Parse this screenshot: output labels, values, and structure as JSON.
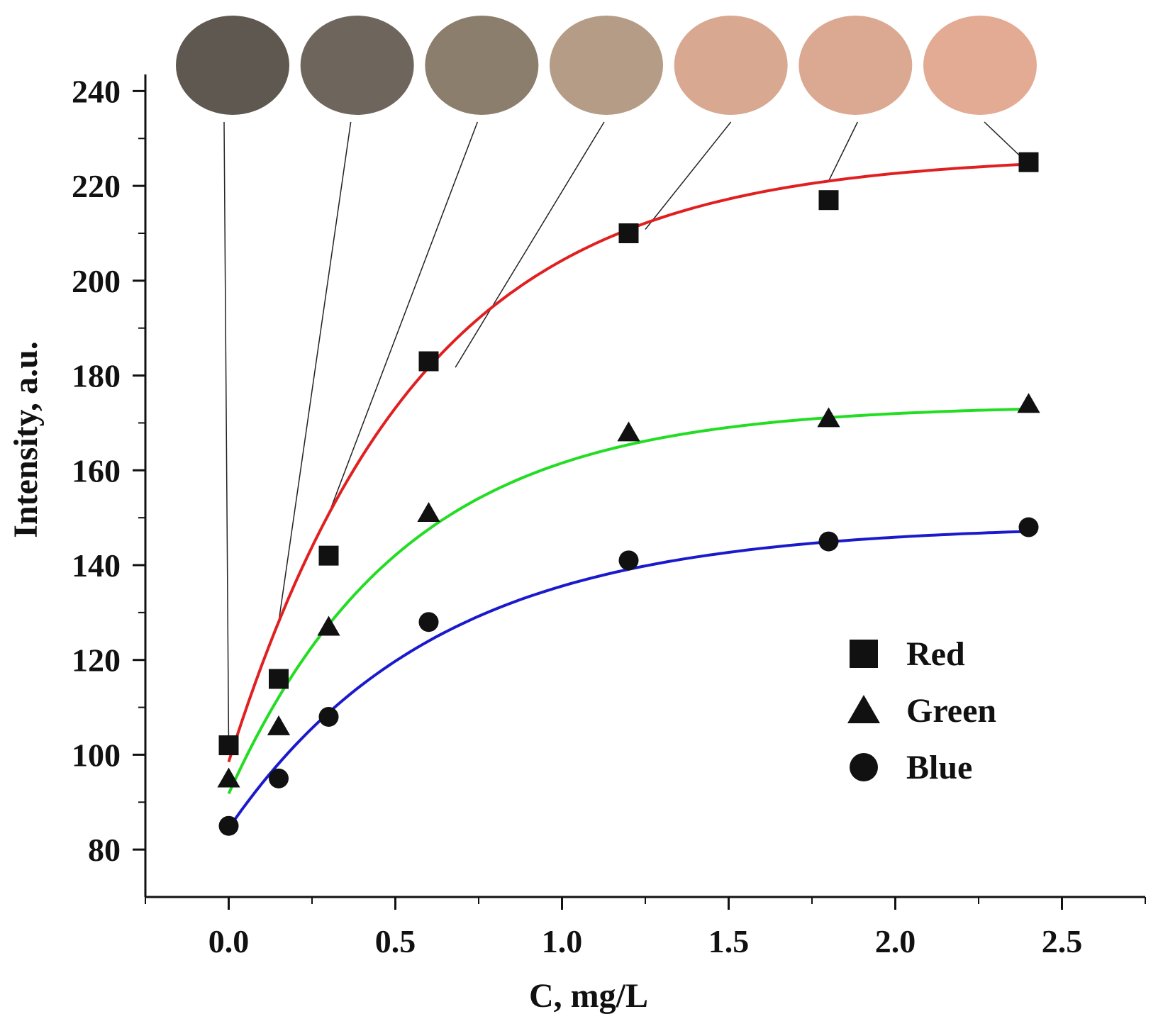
{
  "chart_data": {
    "type": "scatter",
    "title": "",
    "xlabel": "C, mg/L",
    "ylabel": "Intensity, a.u.",
    "xlim": [
      -0.25,
      2.75
    ],
    "ylim": [
      70,
      245
    ],
    "x_ticks": [
      "0.0",
      "0.5",
      "1.0",
      "1.5",
      "2.0",
      "2.5"
    ],
    "y_ticks": [
      "80",
      "100",
      "120",
      "140",
      "160",
      "180",
      "200",
      "220",
      "240"
    ],
    "x": [
      0,
      0.15,
      0.3,
      0.6,
      1.2,
      1.8,
      2.4
    ],
    "series": [
      {
        "name": "Red",
        "marker": "square",
        "color": "#e02020",
        "values": [
          102,
          116,
          142,
          183,
          210,
          217,
          225
        ],
        "fit": {
          "a": 226.5,
          "b": 128,
          "k": 1.75
        }
      },
      {
        "name": "Green",
        "marker": "triangle",
        "color": "#22dd22",
        "values": [
          95,
          106,
          127,
          151,
          168,
          171,
          174
        ],
        "fit": {
          "a": 173.8,
          "b": 82,
          "k": 1.9
        }
      },
      {
        "name": "Blue",
        "marker": "circle",
        "color": "#1a1acc",
        "values": [
          85,
          95,
          108,
          128,
          141,
          145,
          148
        ],
        "fit": {
          "a": 148.5,
          "b": 64,
          "k": 1.6
        }
      }
    ],
    "legend_position": "bottom-right",
    "grid": false,
    "color_swatches": [
      "#5f5850",
      "#6e665c",
      "#8c7e6c",
      "#b59c86",
      "#d8a890",
      "#dba992",
      "#e3ab93"
    ]
  }
}
